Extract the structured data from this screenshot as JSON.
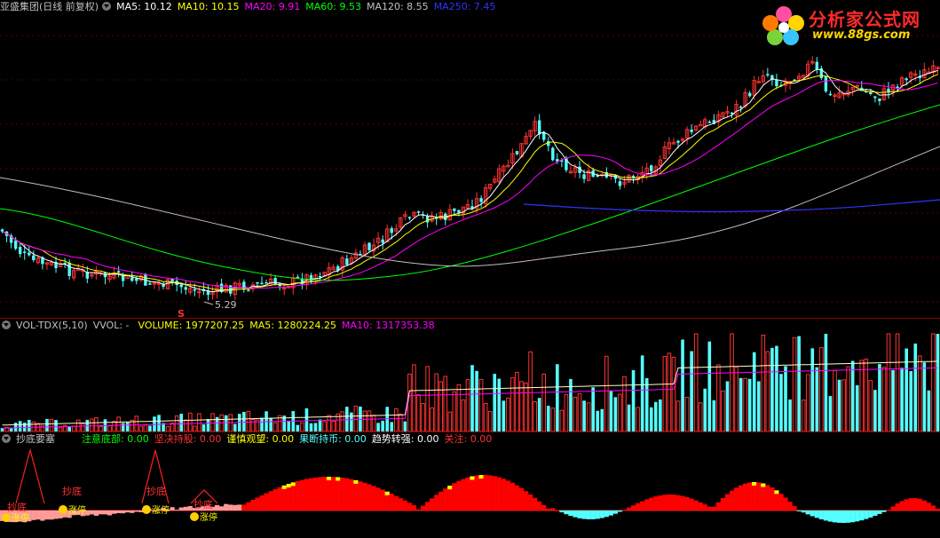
{
  "price_header": {
    "title": "亚盛集团(日线 前复权)",
    "ma5": "MA5: 10.12",
    "ma10": "MA10: 10.15",
    "ma20": "MA20: 9.91",
    "ma60": "MA60: 9.53",
    "ma120": "MA120: 8.55",
    "ma250": "MA250: 7.45"
  },
  "price_low_label": "5.29",
  "signal_marker": "S",
  "vol_header": {
    "name": "VOL-TDX(5,10)",
    "vvol": "VVOL: -",
    "volume": "VOLUME: 1977207.25",
    "ma5": "MA5: 1280224.25",
    "ma10": "MA10: 1317353.38"
  },
  "ind_header": {
    "name": "抄底要塞",
    "f1": "注意底部: 0.00",
    "f2": "坚决持股: 0.00",
    "f3": "谨慎观望: 0.00",
    "f4": "果断持币: 0.00",
    "f5": "趋势转强: 0.00",
    "f6": "关注: 0.00"
  },
  "ind_annotations": {
    "chaodi": "抄底",
    "zhangting": "涨停"
  },
  "logo": {
    "name": "分析家公式网",
    "url": "www.88gs.com"
  },
  "colors": {
    "up": "#ff3232",
    "down": "#54ffff",
    "ma5": "#ffffff",
    "ma10": "#ffff00",
    "ma20": "#ff00ff",
    "ma60": "#00ff00",
    "ma120": "#c0c0c0",
    "ma250": "#3232ff",
    "separator": "#8b0000"
  }
}
